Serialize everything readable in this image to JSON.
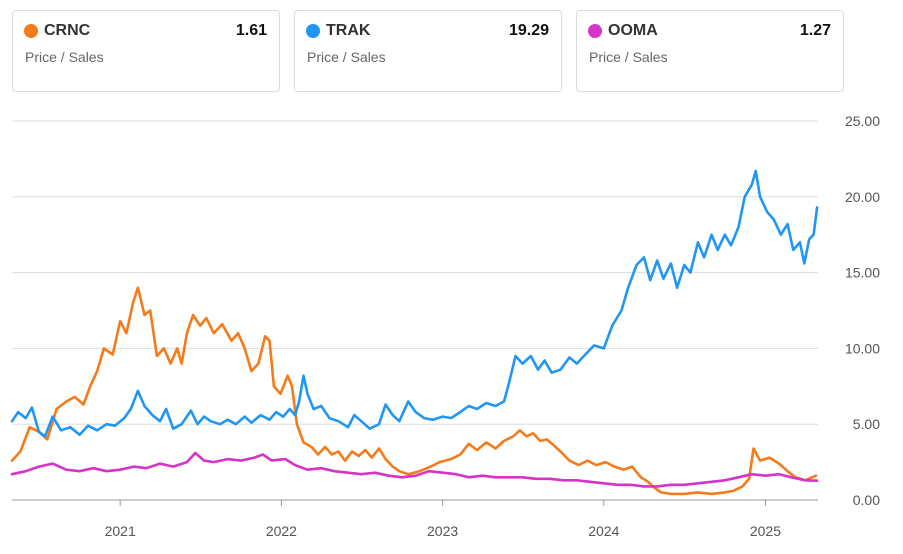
{
  "cards": [
    {
      "ticker": "CRNC",
      "value": "1.61",
      "metric": "Price / Sales",
      "color": "#f47a1a"
    },
    {
      "ticker": "TRAK",
      "value": "19.29",
      "metric": "Price / Sales",
      "color": "#2196f3"
    },
    {
      "ticker": "OOMA",
      "value": "1.27",
      "metric": "Price / Sales",
      "color": "#d633c8"
    }
  ],
  "chart_data": {
    "type": "line",
    "ylim": [
      0,
      25
    ],
    "xlim": [
      "2020-05-01",
      "2025-04-30"
    ],
    "y_ticks": [
      "25.00",
      "20.00",
      "15.00",
      "10.00",
      "5.00",
      "0.00"
    ],
    "x_ticks": [
      "2021",
      "2022",
      "2023",
      "2024",
      "2025"
    ],
    "grid": "horizontal",
    "series": [
      {
        "name": "CRNC",
        "color": "#f47a1a",
        "points": [
          [
            "2020-05-01",
            2.6
          ],
          [
            "2020-05-20",
            3.2
          ],
          [
            "2020-06-10",
            4.8
          ],
          [
            "2020-07-01",
            4.5
          ],
          [
            "2020-07-20",
            4.0
          ],
          [
            "2020-08-10",
            6.0
          ],
          [
            "2020-09-01",
            6.5
          ],
          [
            "2020-09-20",
            6.8
          ],
          [
            "2020-10-10",
            6.3
          ],
          [
            "2020-10-25",
            7.5
          ],
          [
            "2020-11-10",
            8.5
          ],
          [
            "2020-11-25",
            10.0
          ],
          [
            "2020-12-15",
            9.6
          ],
          [
            "2021-01-01",
            11.8
          ],
          [
            "2021-01-15",
            11.0
          ],
          [
            "2021-01-30",
            13.0
          ],
          [
            "2021-02-10",
            14.0
          ],
          [
            "2021-02-25",
            12.2
          ],
          [
            "2021-03-10",
            12.5
          ],
          [
            "2021-03-25",
            9.5
          ],
          [
            "2021-04-10",
            10.0
          ],
          [
            "2021-04-25",
            9.0
          ],
          [
            "2021-05-10",
            10.0
          ],
          [
            "2021-05-20",
            9.0
          ],
          [
            "2021-06-01",
            11.0
          ],
          [
            "2021-06-15",
            12.2
          ],
          [
            "2021-07-01",
            11.5
          ],
          [
            "2021-07-15",
            12.0
          ],
          [
            "2021-08-01",
            11.0
          ],
          [
            "2021-08-20",
            11.6
          ],
          [
            "2021-09-10",
            10.5
          ],
          [
            "2021-09-25",
            11.0
          ],
          [
            "2021-10-10",
            10.0
          ],
          [
            "2021-10-25",
            8.5
          ],
          [
            "2021-11-10",
            9.0
          ],
          [
            "2021-11-25",
            10.8
          ],
          [
            "2021-12-05",
            10.5
          ],
          [
            "2021-12-15",
            7.5
          ],
          [
            "2021-12-30",
            7.0
          ],
          [
            "2022-01-15",
            8.2
          ],
          [
            "2022-01-25",
            7.5
          ],
          [
            "2022-02-05",
            5.0
          ],
          [
            "2022-02-20",
            3.8
          ],
          [
            "2022-03-10",
            3.5
          ],
          [
            "2022-03-25",
            3.0
          ],
          [
            "2022-04-10",
            3.5
          ],
          [
            "2022-04-25",
            3.0
          ],
          [
            "2022-05-10",
            3.2
          ],
          [
            "2022-05-25",
            2.6
          ],
          [
            "2022-06-10",
            3.2
          ],
          [
            "2022-06-25",
            2.9
          ],
          [
            "2022-07-10",
            3.3
          ],
          [
            "2022-07-25",
            2.8
          ],
          [
            "2022-08-10",
            3.4
          ],
          [
            "2022-08-25",
            2.7
          ],
          [
            "2022-09-10",
            2.2
          ],
          [
            "2022-09-25",
            1.9
          ],
          [
            "2022-10-15",
            1.7
          ],
          [
            "2022-11-10",
            1.9
          ],
          [
            "2022-12-05",
            2.2
          ],
          [
            "2022-12-25",
            2.5
          ],
          [
            "2023-01-20",
            2.7
          ],
          [
            "2023-02-10",
            3.0
          ],
          [
            "2023-03-01",
            3.7
          ],
          [
            "2023-03-20",
            3.3
          ],
          [
            "2023-04-10",
            3.8
          ],
          [
            "2023-05-01",
            3.4
          ],
          [
            "2023-05-20",
            3.9
          ],
          [
            "2023-06-10",
            4.2
          ],
          [
            "2023-06-25",
            4.6
          ],
          [
            "2023-07-10",
            4.2
          ],
          [
            "2023-07-25",
            4.4
          ],
          [
            "2023-08-10",
            3.9
          ],
          [
            "2023-08-25",
            4.0
          ],
          [
            "2023-09-10",
            3.6
          ],
          [
            "2023-09-25",
            3.2
          ],
          [
            "2023-10-15",
            2.6
          ],
          [
            "2023-11-05",
            2.3
          ],
          [
            "2023-11-25",
            2.6
          ],
          [
            "2023-12-15",
            2.3
          ],
          [
            "2024-01-05",
            2.5
          ],
          [
            "2024-01-25",
            2.2
          ],
          [
            "2024-02-15",
            2.0
          ],
          [
            "2024-03-05",
            2.2
          ],
          [
            "2024-03-25",
            1.5
          ],
          [
            "2024-04-10",
            1.2
          ],
          [
            "2024-04-25",
            0.8
          ],
          [
            "2024-05-10",
            0.5
          ],
          [
            "2024-06-01",
            0.4
          ],
          [
            "2024-07-01",
            0.4
          ],
          [
            "2024-08-01",
            0.5
          ],
          [
            "2024-09-01",
            0.4
          ],
          [
            "2024-10-01",
            0.5
          ],
          [
            "2024-10-20",
            0.6
          ],
          [
            "2024-11-10",
            0.9
          ],
          [
            "2024-11-25",
            1.4
          ],
          [
            "2024-12-05",
            3.4
          ],
          [
            "2024-12-20",
            2.6
          ],
          [
            "2025-01-10",
            2.8
          ],
          [
            "2025-02-01",
            2.4
          ],
          [
            "2025-02-20",
            1.9
          ],
          [
            "2025-03-10",
            1.5
          ],
          [
            "2025-04-01",
            1.3
          ],
          [
            "2025-04-25",
            1.6
          ]
        ]
      },
      {
        "name": "TRAK",
        "color": "#2196f3",
        "points": [
          [
            "2020-05-01",
            5.2
          ],
          [
            "2020-05-15",
            5.8
          ],
          [
            "2020-06-01",
            5.4
          ],
          [
            "2020-06-15",
            6.1
          ],
          [
            "2020-07-01",
            4.5
          ],
          [
            "2020-07-15",
            4.2
          ],
          [
            "2020-08-01",
            5.5
          ],
          [
            "2020-08-20",
            4.6
          ],
          [
            "2020-09-10",
            4.8
          ],
          [
            "2020-10-01",
            4.3
          ],
          [
            "2020-10-20",
            4.9
          ],
          [
            "2020-11-10",
            4.6
          ],
          [
            "2020-12-01",
            5.0
          ],
          [
            "2020-12-20",
            4.9
          ],
          [
            "2021-01-10",
            5.4
          ],
          [
            "2021-01-25",
            6.0
          ],
          [
            "2021-02-10",
            7.2
          ],
          [
            "2021-02-25",
            6.2
          ],
          [
            "2021-03-15",
            5.6
          ],
          [
            "2021-04-01",
            5.2
          ],
          [
            "2021-04-15",
            6.0
          ],
          [
            "2021-05-01",
            4.7
          ],
          [
            "2021-05-20",
            5.0
          ],
          [
            "2021-06-10",
            5.9
          ],
          [
            "2021-06-25",
            5.0
          ],
          [
            "2021-07-10",
            5.5
          ],
          [
            "2021-07-25",
            5.2
          ],
          [
            "2021-08-15",
            5.0
          ],
          [
            "2021-09-01",
            5.3
          ],
          [
            "2021-09-20",
            5.0
          ],
          [
            "2021-10-10",
            5.5
          ],
          [
            "2021-10-25",
            5.1
          ],
          [
            "2021-11-15",
            5.6
          ],
          [
            "2021-12-05",
            5.3
          ],
          [
            "2021-12-20",
            5.8
          ],
          [
            "2022-01-05",
            5.5
          ],
          [
            "2022-01-20",
            6.0
          ],
          [
            "2022-02-01",
            5.6
          ],
          [
            "2022-02-10",
            6.5
          ],
          [
            "2022-02-20",
            8.2
          ],
          [
            "2022-03-01",
            7.0
          ],
          [
            "2022-03-15",
            6.0
          ],
          [
            "2022-04-01",
            6.2
          ],
          [
            "2022-04-20",
            5.4
          ],
          [
            "2022-05-10",
            5.2
          ],
          [
            "2022-06-01",
            4.8
          ],
          [
            "2022-06-15",
            5.6
          ],
          [
            "2022-07-01",
            5.2
          ],
          [
            "2022-07-20",
            4.7
          ],
          [
            "2022-08-10",
            5.0
          ],
          [
            "2022-08-25",
            6.3
          ],
          [
            "2022-09-10",
            5.6
          ],
          [
            "2022-09-25",
            5.2
          ],
          [
            "2022-10-15",
            6.5
          ],
          [
            "2022-11-01",
            5.8
          ],
          [
            "2022-11-20",
            5.4
          ],
          [
            "2022-12-10",
            5.3
          ],
          [
            "2023-01-01",
            5.5
          ],
          [
            "2023-01-20",
            5.4
          ],
          [
            "2023-02-10",
            5.8
          ],
          [
            "2023-03-01",
            6.2
          ],
          [
            "2023-03-20",
            6.0
          ],
          [
            "2023-04-10",
            6.4
          ],
          [
            "2023-05-01",
            6.2
          ],
          [
            "2023-05-20",
            6.5
          ],
          [
            "2023-06-01",
            7.8
          ],
          [
            "2023-06-15",
            9.5
          ],
          [
            "2023-07-01",
            9.0
          ],
          [
            "2023-07-20",
            9.5
          ],
          [
            "2023-08-05",
            8.6
          ],
          [
            "2023-08-20",
            9.2
          ],
          [
            "2023-09-05",
            8.4
          ],
          [
            "2023-09-25",
            8.6
          ],
          [
            "2023-10-15",
            9.4
          ],
          [
            "2023-11-01",
            9.0
          ],
          [
            "2023-11-20",
            9.6
          ],
          [
            "2023-12-10",
            10.2
          ],
          [
            "2024-01-01",
            10.0
          ],
          [
            "2024-01-20",
            11.5
          ],
          [
            "2024-02-10",
            12.5
          ],
          [
            "2024-02-25",
            14.0
          ],
          [
            "2024-03-15",
            15.5
          ],
          [
            "2024-04-01",
            16.0
          ],
          [
            "2024-04-15",
            14.5
          ],
          [
            "2024-05-01",
            15.8
          ],
          [
            "2024-05-15",
            14.6
          ],
          [
            "2024-06-01",
            15.6
          ],
          [
            "2024-06-15",
            14.0
          ],
          [
            "2024-07-01",
            15.5
          ],
          [
            "2024-07-15",
            15.0
          ],
          [
            "2024-08-01",
            17.0
          ],
          [
            "2024-08-15",
            16.0
          ],
          [
            "2024-09-01",
            17.5
          ],
          [
            "2024-09-15",
            16.5
          ],
          [
            "2024-10-01",
            17.5
          ],
          [
            "2024-10-15",
            16.8
          ],
          [
            "2024-11-01",
            18.0
          ],
          [
            "2024-11-15",
            20.0
          ],
          [
            "2024-12-01",
            20.8
          ],
          [
            "2024-12-10",
            21.7
          ],
          [
            "2024-12-20",
            20.0
          ],
          [
            "2025-01-05",
            19.0
          ],
          [
            "2025-01-20",
            18.5
          ],
          [
            "2025-02-05",
            17.5
          ],
          [
            "2025-02-20",
            18.2
          ],
          [
            "2025-03-05",
            16.5
          ],
          [
            "2025-03-20",
            17.0
          ],
          [
            "2025-03-30",
            15.6
          ],
          [
            "2025-04-10",
            17.2
          ],
          [
            "2025-04-20",
            17.5
          ],
          [
            "2025-04-28",
            19.3
          ]
        ]
      },
      {
        "name": "OOMA",
        "color": "#d633c8",
        "points": [
          [
            "2020-05-01",
            1.7
          ],
          [
            "2020-06-01",
            1.9
          ],
          [
            "2020-07-01",
            2.2
          ],
          [
            "2020-08-01",
            2.4
          ],
          [
            "2020-09-01",
            2.0
          ],
          [
            "2020-10-01",
            1.9
          ],
          [
            "2020-11-01",
            2.1
          ],
          [
            "2020-12-01",
            1.9
          ],
          [
            "2021-01-01",
            2.0
          ],
          [
            "2021-02-01",
            2.2
          ],
          [
            "2021-03-01",
            2.1
          ],
          [
            "2021-04-01",
            2.4
          ],
          [
            "2021-05-01",
            2.2
          ],
          [
            "2021-06-01",
            2.5
          ],
          [
            "2021-06-20",
            3.1
          ],
          [
            "2021-07-10",
            2.6
          ],
          [
            "2021-08-01",
            2.5
          ],
          [
            "2021-09-01",
            2.7
          ],
          [
            "2021-10-01",
            2.6
          ],
          [
            "2021-11-01",
            2.8
          ],
          [
            "2021-11-20",
            3.0
          ],
          [
            "2021-12-10",
            2.6
          ],
          [
            "2022-01-10",
            2.7
          ],
          [
            "2022-02-01",
            2.3
          ],
          [
            "2022-03-01",
            2.0
          ],
          [
            "2022-04-01",
            2.1
          ],
          [
            "2022-05-01",
            1.9
          ],
          [
            "2022-06-01",
            1.8
          ],
          [
            "2022-07-01",
            1.7
          ],
          [
            "2022-08-01",
            1.8
          ],
          [
            "2022-09-01",
            1.6
          ],
          [
            "2022-10-01",
            1.5
          ],
          [
            "2022-11-01",
            1.6
          ],
          [
            "2022-12-01",
            1.9
          ],
          [
            "2023-01-01",
            1.8
          ],
          [
            "2023-02-01",
            1.7
          ],
          [
            "2023-03-01",
            1.5
          ],
          [
            "2023-04-01",
            1.6
          ],
          [
            "2023-05-01",
            1.5
          ],
          [
            "2023-06-01",
            1.5
          ],
          [
            "2023-07-01",
            1.5
          ],
          [
            "2023-08-01",
            1.4
          ],
          [
            "2023-09-01",
            1.4
          ],
          [
            "2023-10-01",
            1.3
          ],
          [
            "2023-11-01",
            1.3
          ],
          [
            "2023-12-01",
            1.2
          ],
          [
            "2024-01-01",
            1.1
          ],
          [
            "2024-02-01",
            1.0
          ],
          [
            "2024-03-01",
            1.0
          ],
          [
            "2024-04-01",
            0.9
          ],
          [
            "2024-05-01",
            0.9
          ],
          [
            "2024-06-01",
            1.0
          ],
          [
            "2024-07-01",
            1.0
          ],
          [
            "2024-08-01",
            1.1
          ],
          [
            "2024-09-01",
            1.2
          ],
          [
            "2024-10-01",
            1.3
          ],
          [
            "2024-11-01",
            1.5
          ],
          [
            "2024-12-01",
            1.7
          ],
          [
            "2025-01-01",
            1.6
          ],
          [
            "2025-02-01",
            1.7
          ],
          [
            "2025-03-01",
            1.5
          ],
          [
            "2025-04-01",
            1.3
          ],
          [
            "2025-04-28",
            1.27
          ]
        ]
      }
    ]
  }
}
